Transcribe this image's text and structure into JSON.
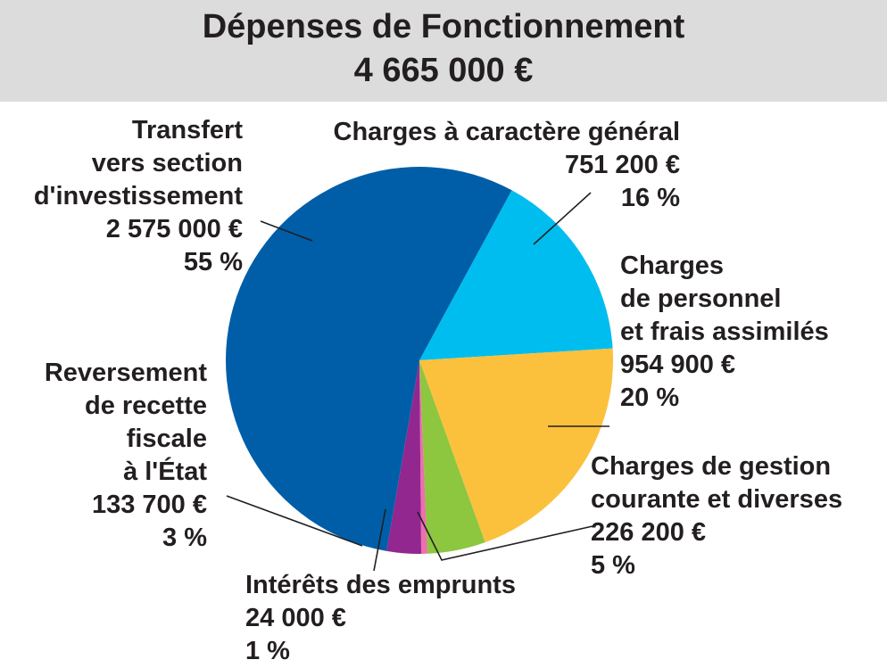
{
  "header": {
    "title": "Dépenses de Fonctionnement",
    "total": "4 665 000 €"
  },
  "chart_data": {
    "type": "pie",
    "title": "Dépenses de Fonctionnement",
    "subtitle": "4 665 000 €",
    "slices": [
      {
        "label_lines": [
          "Charges à caractère général"
        ],
        "value": 751200,
        "value_label": "751 200 €",
        "percent": 16,
        "percent_label": "16 %",
        "color": "#00bdf0"
      },
      {
        "label_lines": [
          "Charges",
          "de personnel",
          "et frais assimilés"
        ],
        "value": 954900,
        "value_label": "954 900 €",
        "percent": 20,
        "percent_label": "20 %",
        "color": "#fcc13c"
      },
      {
        "label_lines": [
          "Charges de gestion",
          "courante et diverses"
        ],
        "value": 226200,
        "value_label": "226 200 €",
        "percent": 5,
        "percent_label": "5 %",
        "color": "#8dc63f"
      },
      {
        "label_lines": [
          "Intérêts des emprunts"
        ],
        "value": 24000,
        "value_label": "24 000 €",
        "percent": 1,
        "percent_label": "1 %",
        "color": "#ec6fae"
      },
      {
        "label_lines": [
          "Reversement",
          "de recette",
          "fiscale",
          "à l'État"
        ],
        "value": 133700,
        "value_label": "133 700 €",
        "percent": 3,
        "percent_label": "3 %",
        "color": "#92278f"
      },
      {
        "label_lines": [
          "Transfert",
          "vers section",
          "d'investissement"
        ],
        "value": 2575000,
        "value_label": "2 575 000 €",
        "percent": 55,
        "percent_label": "55 %",
        "color": "#005ea8"
      }
    ],
    "legend": "none"
  }
}
